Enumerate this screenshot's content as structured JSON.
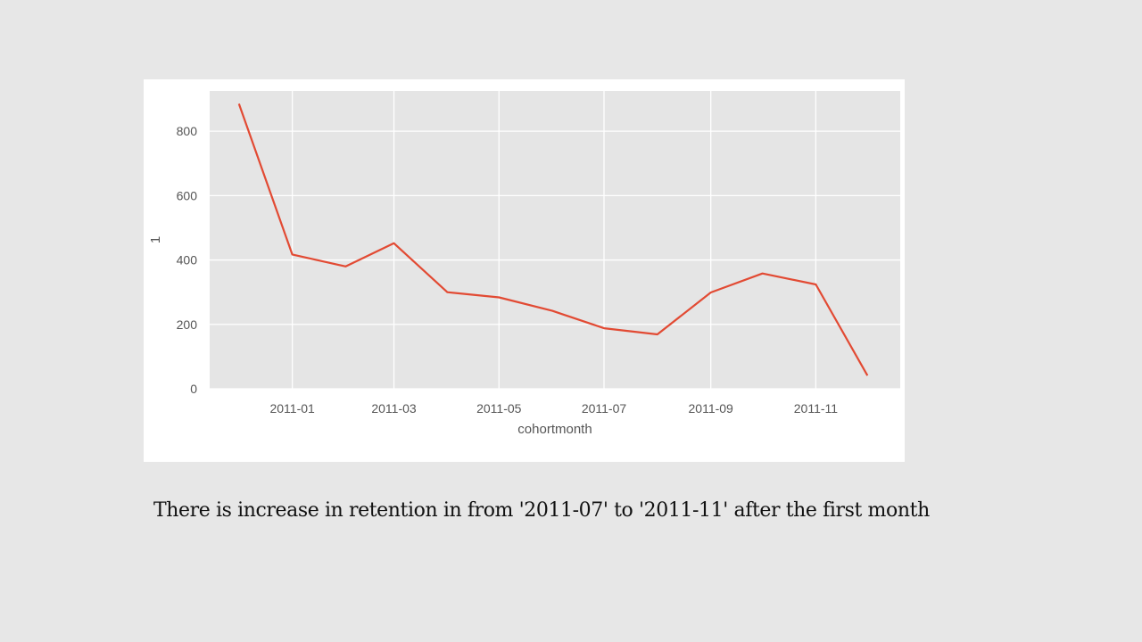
{
  "chart_data": {
    "type": "line",
    "x": [
      "2010-12",
      "2011-01",
      "2011-02",
      "2011-03",
      "2011-04",
      "2011-05",
      "2011-06",
      "2011-07",
      "2011-08",
      "2011-09",
      "2011-10",
      "2011-11",
      "2011-12"
    ],
    "series": [
      {
        "values": [
          885,
          417,
          380,
          452,
          300,
          284,
          242,
          188,
          169,
          299,
          358,
          324,
          41
        ]
      }
    ],
    "xlabel": "cohortmonth",
    "ylabel": "1",
    "xticks": [
      "2011-01",
      "2011-03",
      "2011-05",
      "2011-07",
      "2011-09",
      "2011-11"
    ],
    "yticks": [
      0,
      200,
      400,
      600,
      800
    ],
    "ylim": [
      0,
      925
    ],
    "xlim": [
      "2010-11-14",
      "2011-12-20"
    ],
    "grid": true,
    "style": "ggplot",
    "line_color": "#e24a33",
    "plot_background": "#e5e5e5",
    "grid_color": "#ffffff"
  },
  "caption": "There is increase in retention in from '2011-07' to '2011-11' after the first month"
}
